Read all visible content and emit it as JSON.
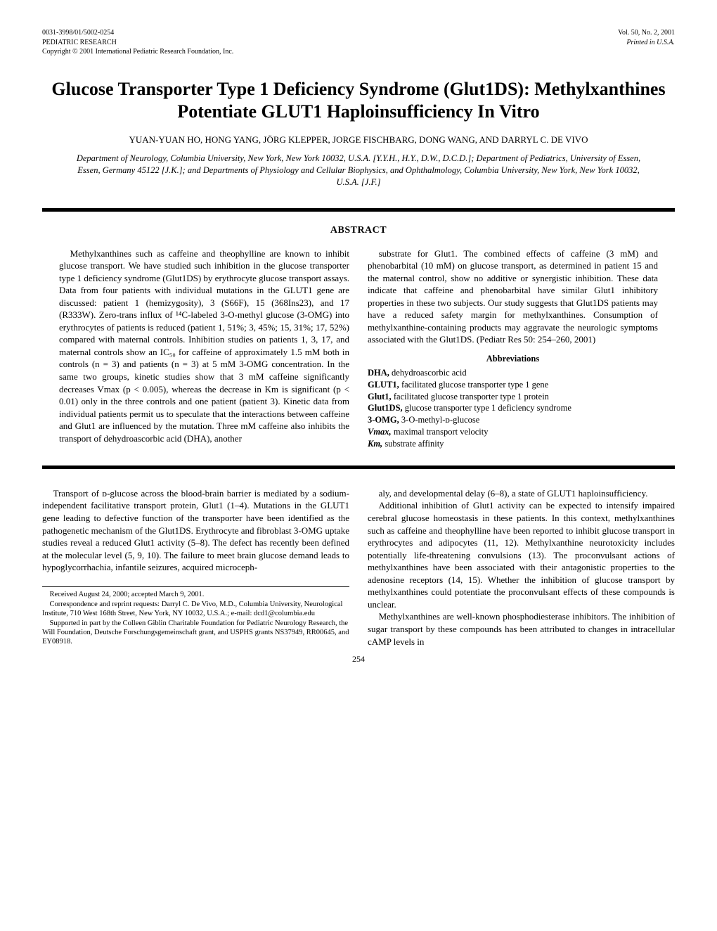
{
  "header": {
    "left_line1": "0031-3998/01/5002-0254",
    "left_line2": "PEDIATRIC RESEARCH",
    "left_line3": "Copyright © 2001 International Pediatric Research Foundation, Inc.",
    "right_line1": "Vol. 50, No. 2, 2001",
    "right_line2": "Printed in U.S.A."
  },
  "title": "Glucose Transporter Type 1 Deficiency Syndrome (Glut1DS): Methylxanthines Potentiate GLUT1 Haploinsufficiency In Vitro",
  "authors": "YUAN-YUAN HO, HONG YANG, JÖRG KLEPPER, JORGE FISCHBARG, DONG WANG, AND DARRYL C. DE VIVO",
  "affiliations": "Department of Neurology, Columbia University, New York, New York 10032, U.S.A. [Y.Y.H., H.Y., D.W., D.C.D.]; Department of Pediatrics, University of Essen, Essen, Germany 45122 [J.K.]; and Departments of Physiology and Cellular Biophysics, and Ophthalmology, Columbia University, New York, New York 10032, U.S.A. [J.F.]",
  "abstract": {
    "heading": "ABSTRACT",
    "left": "Methylxanthines such as caffeine and theophylline are known to inhibit glucose transport. We have studied such inhibition in the glucose transporter type 1 deficiency syndrome (Glut1DS) by erythrocyte glucose transport assays. Data from four patients with individual mutations in the GLUT1 gene are discussed: patient 1 (hemizygosity), 3 (S66F), 15 (368Ins23), and 17 (R333W). Zero-trans influx of ¹⁴C-labeled 3-O-methyl glucose (3-OMG) into erythrocytes of patients is reduced (patient 1, 51%; 3, 45%; 15, 31%; 17, 52%) compared with maternal controls. Inhibition studies on patients 1, 3, 17, and maternal controls show an IC₅₀ for caffeine of approximately 1.5 mM both in controls (n = 3) and patients (n = 3) at 5 mM 3-OMG concentration. In the same two groups, kinetic studies show that 3 mM caffeine significantly decreases Vmax (p < 0.005), whereas the decrease in Km is significant (p < 0.01) only in the three controls and one patient (patient 3). Kinetic data from individual patients permit us to speculate that the interactions between caffeine and Glut1 are influenced by the mutation. Three mM caffeine also inhibits the transport of dehydroascorbic acid (DHA), another",
    "right_top": "substrate for Glut1. The combined effects of caffeine (3 mM) and phenobarbital (10 mM) on glucose transport, as determined in patient 15 and the maternal control, show no additive or synergistic inhibition. These data indicate that caffeine and phenobarbital have similar Glut1 inhibitory properties in these two subjects. Our study suggests that Glut1DS patients may have a reduced safety margin for methylxanthines. Consumption of methylxanthine-containing products may aggravate the neurologic symptoms associated with the Glut1DS. (Pediatr Res 50: 254–260, 2001)",
    "abbrev_heading": "Abbreviations",
    "abbrevs": [
      {
        "term": "DHA,",
        "def": " dehydroascorbic acid"
      },
      {
        "term": "GLUT1,",
        "def": " facilitated glucose transporter type 1 gene"
      },
      {
        "term": "Glut1,",
        "def": " facilitated glucose transporter type 1 protein"
      },
      {
        "term": "Glut1DS,",
        "def": " glucose transporter type 1 deficiency syndrome"
      },
      {
        "term": "3-OMG,",
        "def": " 3-O-methyl-ᴅ-glucose"
      },
      {
        "term": "Vmax,",
        "def": " maximal transport velocity"
      },
      {
        "term": "Km,",
        "def": " substrate affinity"
      }
    ]
  },
  "body": {
    "left_p1": "Transport of ᴅ-glucose across the blood-brain barrier is mediated by a sodium-independent facilitative transport protein, Glut1 (1–4). Mutations in the GLUT1 gene leading to defective function of the transporter have been identified as the pathogenetic mechanism of the Glut1DS. Erythrocyte and fibroblast 3-OMG uptake studies reveal a reduced Glut1 activity (5–8). The defect has recently been defined at the molecular level (5, 9, 10). The failure to meet brain glucose demand leads to hypoglycorrhachia, infantile seizures, acquired microceph-",
    "right_p1": "aly, and developmental delay (6–8), a state of GLUT1 haploinsufficiency.",
    "right_p2": "Additional inhibition of Glut1 activity can be expected to intensify impaired cerebral glucose homeostasis in these patients. In this context, methylxanthines such as caffeine and theophylline have been reported to inhibit glucose transport in erythrocytes and adipocytes (11, 12). Methylxanthine neurotoxicity includes potentially life-threatening convulsions (13). The proconvulsant actions of methylxanthines have been associated with their antagonistic properties to the adenosine receptors (14, 15). Whether the inhibition of glucose transport by methylxanthines could potentiate the proconvulsant effects of these compounds is unclear.",
    "right_p3": "Methylxanthines are well-known phosphodiesterase inhibitors. The inhibition of sugar transport by these compounds has been attributed to changes in intracellular cAMP levels in"
  },
  "footnotes": {
    "f1": "Received August 24, 2000; accepted March 9, 2001.",
    "f2": "Correspondence and reprint requests: Darryl C. De Vivo, M.D., Columbia University, Neurological Institute, 710 West 168th Street, New York, NY 10032, U.S.A.; e-mail: dcd1@columbia.edu",
    "f3": "Supported in part by the Colleen Giblin Charitable Foundation for Pediatric Neurology Research, the Will Foundation, Deutsche Forschungsgemeinschaft grant, and USPHS grants NS37949, RR00645, and EY08918."
  },
  "page_number": "254"
}
